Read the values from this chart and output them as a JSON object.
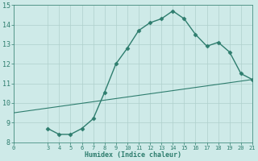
{
  "xlabel": "Humidex (Indice chaleur)",
  "line1_x": [
    3,
    4,
    5,
    6,
    7,
    8,
    9,
    10,
    11,
    12,
    13,
    14,
    15,
    16,
    17,
    18,
    19,
    20,
    21
  ],
  "line1_y": [
    8.7,
    8.4,
    8.4,
    8.7,
    9.2,
    10.55,
    12.0,
    12.8,
    13.7,
    14.1,
    14.3,
    14.7,
    14.3,
    13.5,
    12.9,
    13.1,
    12.6,
    11.5,
    11.2
  ],
  "line2_x": [
    0,
    21
  ],
  "line2_y": [
    9.5,
    11.2
  ],
  "line_color": "#2e7d6e",
  "bg_color": "#ceeae8",
  "grid_color": "#afd0cc",
  "xlim": [
    0,
    21
  ],
  "ylim": [
    8,
    15
  ],
  "xticks": [
    0,
    3,
    4,
    5,
    6,
    7,
    8,
    9,
    10,
    11,
    12,
    13,
    14,
    15,
    16,
    17,
    18,
    19,
    20,
    21
  ],
  "yticks": [
    8,
    9,
    10,
    11,
    12,
    13,
    14,
    15
  ],
  "marker": "D",
  "markersize": 2.5,
  "linewidth1": 1.0,
  "linewidth2": 0.8
}
